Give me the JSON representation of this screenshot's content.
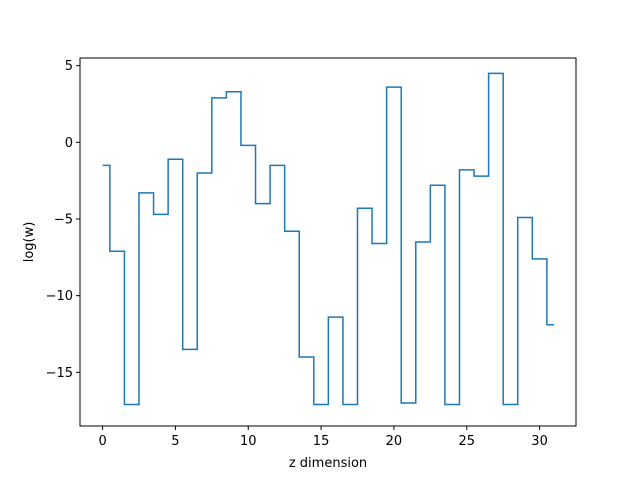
{
  "chart_data": {
    "type": "line",
    "drawstyle": "steps-mid",
    "xlabel": "z dimension",
    "ylabel": "log(w)",
    "xlim": [
      -1.55,
      32.5
    ],
    "ylim": [
      -18.5,
      5.5
    ],
    "xticks": [
      0,
      5,
      10,
      15,
      20,
      25,
      30
    ],
    "yticks": [
      5,
      0,
      -5,
      -10,
      -15
    ],
    "ytick_labels": [
      "5",
      "0",
      "−5",
      "−10",
      "−15"
    ],
    "grid": false,
    "series": [
      {
        "color": "#1f77b4",
        "x": [
          0,
          1,
          2,
          3,
          4,
          5,
          6,
          7,
          8,
          9,
          10,
          11,
          12,
          13,
          14,
          15,
          16,
          17,
          18,
          19,
          20,
          21,
          22,
          23,
          24,
          25,
          26,
          27,
          28,
          29,
          30,
          31
        ],
        "values": [
          -1.5,
          -7.1,
          -17.1,
          -3.3,
          -4.7,
          -1.1,
          -13.5,
          -2.0,
          2.9,
          3.3,
          -0.2,
          -4.0,
          -1.5,
          -5.8,
          -14.0,
          -17.1,
          -11.4,
          -17.1,
          -4.3,
          -6.6,
          3.6,
          -17.0,
          -6.5,
          -2.8,
          -17.1,
          -1.8,
          -2.2,
          4.5,
          -17.1,
          -4.9,
          -7.6,
          -11.9
        ]
      }
    ]
  }
}
